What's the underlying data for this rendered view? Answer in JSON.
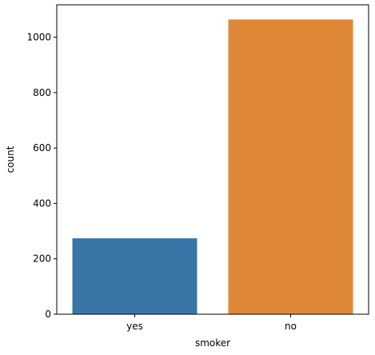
{
  "chart_data": {
    "type": "bar",
    "title": "",
    "xlabel": "smoker",
    "ylabel": "count",
    "categories": [
      "yes",
      "no"
    ],
    "values": [
      274,
      1064
    ],
    "colors": [
      "#3a75a8",
      "#de8737"
    ],
    "ylim": [
      0,
      1117
    ],
    "yticks": [
      0,
      200,
      400,
      600,
      800,
      1000
    ],
    "grid": false
  }
}
